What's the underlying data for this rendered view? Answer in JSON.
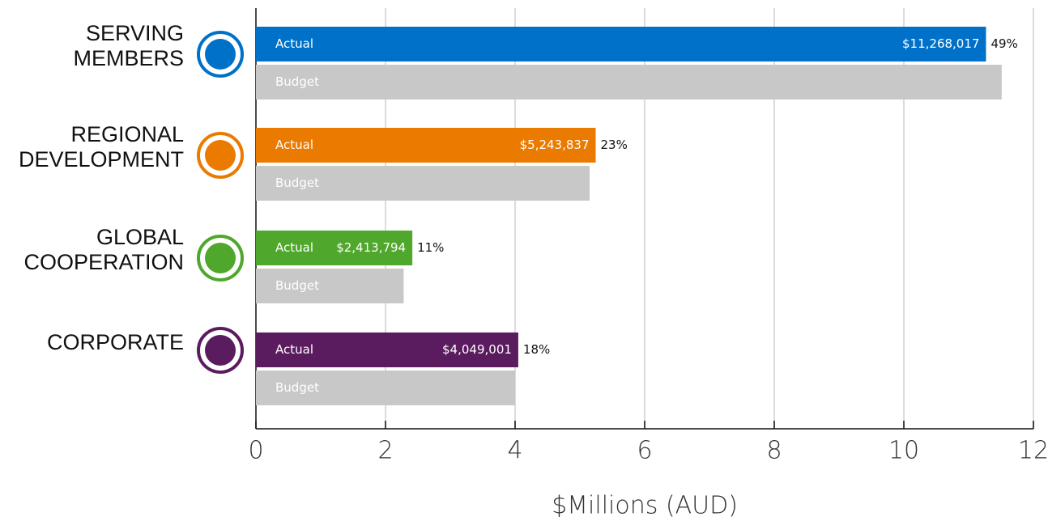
{
  "chart_data": {
    "type": "bar",
    "orientation": "horizontal",
    "categories": [
      "SERVING MEMBERS",
      "REGIONAL DEVELOPMENT",
      "GLOBAL COOPERATION",
      "CORPORATE"
    ],
    "series": [
      {
        "name": "Actual",
        "colors": [
          "#0071c9",
          "#eb7a00",
          "#4fa72b",
          "#5b1b5f"
        ],
        "values": [
          11.268017,
          5.243837,
          2.413794,
          4.049001
        ],
        "value_labels": [
          "$11,268,017",
          "$5,243,837",
          "$2,413,794",
          "$4,049,001"
        ],
        "shares": [
          {
            "value": 49,
            "label": "49%"
          },
          {
            "value": 23,
            "label": "23%"
          },
          {
            "value": 11,
            "label": "11%"
          },
          {
            "value": 18,
            "label": "18%"
          }
        ]
      },
      {
        "name": "Budget",
        "color": "#c8c8c8",
        "values": [
          11.51,
          5.15,
          2.28,
          4.0
        ]
      }
    ],
    "xlabel": "$Millions (AUD)",
    "xlim": [
      0,
      12
    ],
    "xticks": [
      0,
      2,
      4,
      6,
      8,
      10,
      12
    ],
    "grid": true
  }
}
